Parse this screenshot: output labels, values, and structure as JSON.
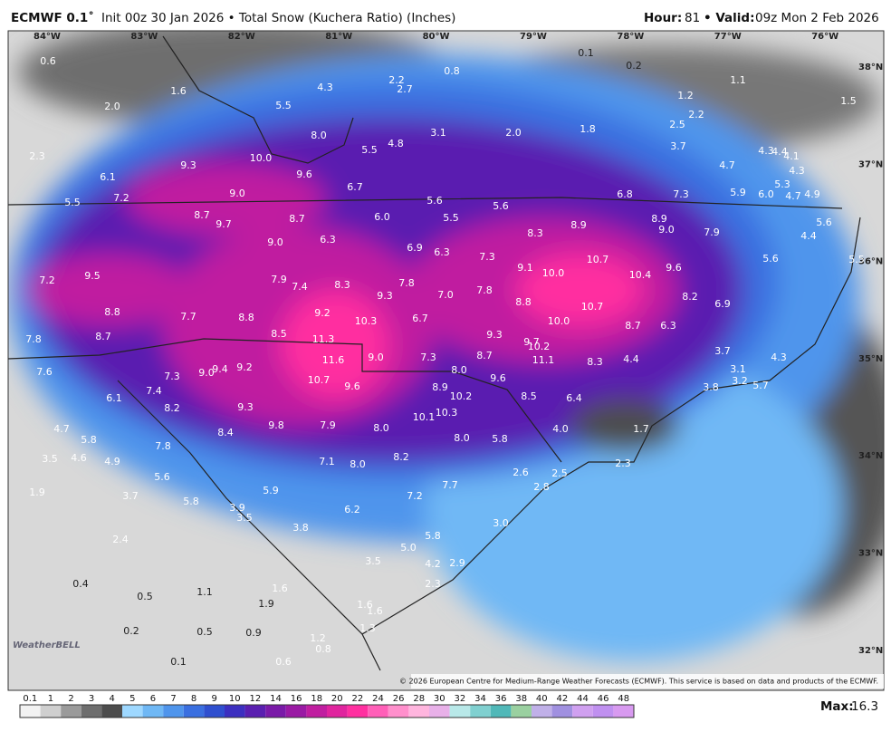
{
  "header": {
    "model": "ECMWF 0.1˚",
    "description": "Init 00z 30 Jan 2026 • Total Snow (Kuchera Ratio) (Inches)",
    "hour_label": "Hour:",
    "hour": "81",
    "valid_label": "• Valid:",
    "valid": "09z Mon 2 Feb 2026"
  },
  "map": {
    "longitudes": [
      "84°W",
      "83°W",
      "82°W",
      "81°W",
      "80°W",
      "79°W",
      "78°W",
      "77°W",
      "76°W"
    ],
    "latitudes": [
      "38°N",
      "37°N",
      "36°N",
      "35°N",
      "34°N",
      "33°N",
      "32°N"
    ],
    "labels": [
      "0.6",
      "1.6",
      "2.0",
      "4.3",
      "2.2",
      "2.7",
      "0.8",
      "0.1",
      "0.2",
      "1.2",
      "2.2",
      "1.1",
      "1.5",
      "5.5",
      "2.5",
      "3.1",
      "2.0",
      "1.8",
      "8.0",
      "4.8",
      "5.5",
      "3.7",
      "4.3",
      "4.4",
      "4.1",
      "2.3",
      "10.0",
      "9.3",
      "9.6",
      "4.7",
      "4.3",
      "6.1",
      "5.3",
      "6.7",
      "9.0",
      "7.2",
      "5.5",
      "5.6",
      "5.6",
      "6.8",
      "7.3",
      "5.9",
      "6.0",
      "4.7",
      "4.9",
      "8.7",
      "9.7",
      "8.7",
      "6.0",
      "5.5",
      "8.9",
      "8.9",
      "9.0",
      "7.9",
      "5.6",
      "9.0",
      "6.3",
      "6.9",
      "6.3",
      "8.3",
      "4.4",
      "10.7",
      "7.3",
      "9.1",
      "10.0",
      "10.4",
      "9.6",
      "5.6",
      "5.5",
      "9.5",
      "7.2",
      "7.9",
      "7.4",
      "8.3",
      "7.8",
      "9.3",
      "7.0",
      "7.8",
      "8.2",
      "8.8",
      "6.9",
      "10.7",
      "8.8",
      "9.2",
      "7.7",
      "8.8",
      "10.3",
      "6.7",
      "10.0",
      "8.7",
      "6.3",
      "7.8",
      "8.7",
      "8.5",
      "11.3",
      "9.3",
      "9.7",
      "10.2",
      "3.7",
      "4.3",
      "7.6",
      "9.0",
      "7.3",
      "8.7",
      "11.1",
      "8.3",
      "4.4",
      "11.6",
      "9.4",
      "9.2",
      "9.0",
      "8.0",
      "3.1",
      "7.3",
      "10.7",
      "9.6",
      "3.2",
      "5.7",
      "6.1",
      "7.4",
      "9.6",
      "8.9",
      "10.2",
      "8.5",
      "6.4",
      "3.8",
      "8.2",
      "9.3",
      "10.3",
      "10.1",
      "1.7",
      "4.7",
      "9.8",
      "7.9",
      "8.0",
      "4.0",
      "8.4",
      "8.0",
      "5.8",
      "5.8",
      "7.8",
      "3.5",
      "4.6",
      "4.9",
      "7.1",
      "8.0",
      "8.2",
      "7.7",
      "2.6",
      "2.5",
      "2.3",
      "5.6",
      "2.8",
      "1.9",
      "5.9",
      "3.7",
      "5.8",
      "7.2",
      "3.9",
      "3.5",
      "6.2",
      "3.0",
      "3.8",
      "5.8",
      "2.4",
      "5.0",
      "3.5",
      "4.2",
      "2.9",
      "0.4",
      "2.3",
      "1.6",
      "1.1",
      "0.5",
      "1.9",
      "1.6",
      "1.6",
      "0.2",
      "0.5",
      "0.9",
      "1.3",
      "1.2",
      "0.8",
      "0.1",
      "0.6"
    ],
    "logo": "WeatherBELL",
    "copyright": "© 2026 European Centre for Medium-Range Weather Forecasts (ECMWF). This service is based on data and products of the ECMWF."
  },
  "legend": {
    "labels": [
      "0.1",
      "1",
      "2",
      "3",
      "4",
      "5",
      "6",
      "7",
      "8",
      "9",
      "10",
      "12",
      "14",
      "16",
      "18",
      "20",
      "22",
      "24",
      "26",
      "28",
      "30",
      "32",
      "34",
      "36",
      "38",
      "40",
      "42",
      "44",
      "46",
      "48"
    ],
    "colors": [
      "#f2f2f2",
      "#cfcfcf",
      "#9a9a9a",
      "#6e6e6e",
      "#4d4d4d",
      "#9ed8ff",
      "#6fb8f5",
      "#4f95ec",
      "#3a6fe0",
      "#2f4fcf",
      "#3c2fc0",
      "#5a1fb0",
      "#7a1aa8",
      "#9a1aa4",
      "#c01ea0",
      "#e0249e",
      "#ff2fa0",
      "#ff5fb8",
      "#ff8fcc",
      "#ffb5de",
      "#e8b0e8",
      "#b8e8e8",
      "#80d0d0",
      "#50b8b8",
      "#9ad0a0",
      "#c0b0e8",
      "#a090e0",
      "#d0a0f0",
      "#c090f0",
      "#d89af0"
    ],
    "max_label": "Max:",
    "max": "16.3"
  }
}
